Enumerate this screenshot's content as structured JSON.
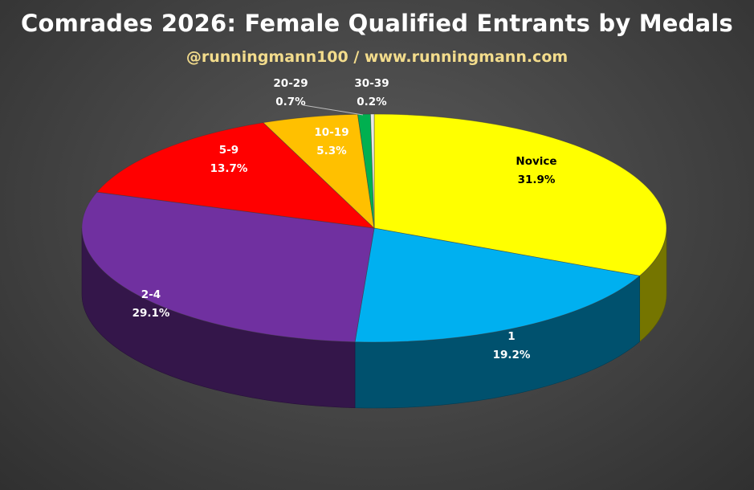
{
  "chart_data": {
    "type": "pie",
    "title": "Comrades 2026: Female Qualified Entrants by Medals",
    "subtitle": "@runningmann100 / www.runningmann.com",
    "slices": [
      {
        "label": "Novice",
        "value": 31.9,
        "display": "31.9%",
        "color": "#ffff00",
        "text_color": "#000000"
      },
      {
        "label": "1",
        "value": 19.2,
        "display": "19.2%",
        "color": "#00b0f0",
        "text_color": "#ffffff"
      },
      {
        "label": "2-4",
        "value": 29.1,
        "display": "29.1%",
        "color": "#7030a0",
        "text_color": "#ffffff"
      },
      {
        "label": "5-9",
        "value": 13.7,
        "display": "13.7%",
        "color": "#ff0000",
        "text_color": "#ffffff"
      },
      {
        "label": "10-19",
        "value": 5.3,
        "display": "5.3%",
        "color": "#ffc000",
        "text_color": "#ffffff"
      },
      {
        "label": "20-29",
        "value": 0.7,
        "display": "0.7%",
        "color": "#00b050",
        "text_color": "#ffffff"
      },
      {
        "label": "30-39",
        "value": 0.2,
        "display": "0.2%",
        "color": "#e8e8e8",
        "text_color": "#ffffff"
      }
    ]
  }
}
